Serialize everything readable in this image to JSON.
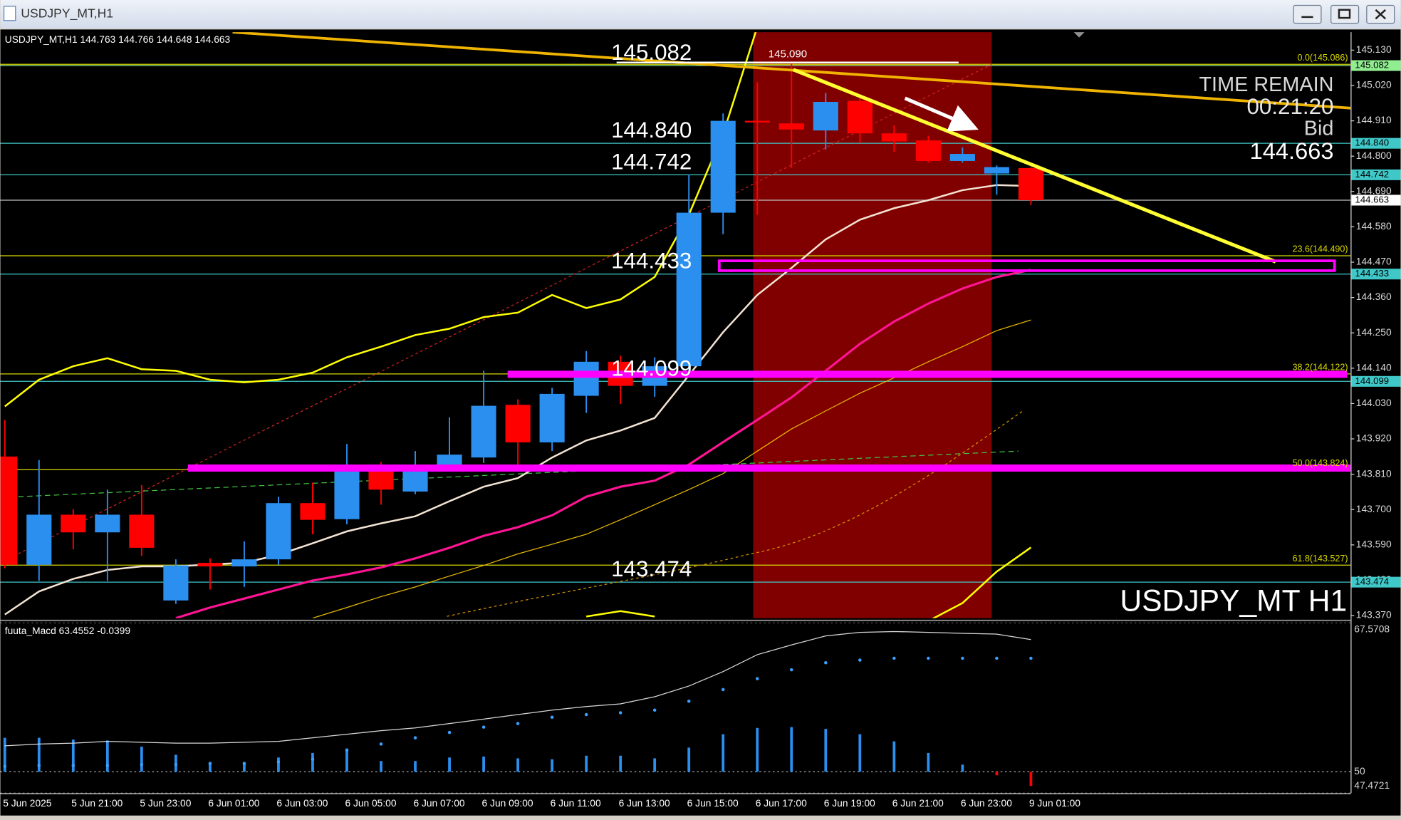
{
  "window": {
    "title": "USDJPY_MT,H1"
  },
  "chart_data": [
    {
      "type": "candlestick",
      "header": "USDJPY_MT,H1  144.763 144.766 144.648 144.663",
      "watermark": "USDJPY_MT H1",
      "time_remain_label": "TIME REMAIN",
      "time_remain": "00:21:20",
      "bid_label": "Bid",
      "high_label": "145.090",
      "categories": [
        "5 Jun 2025",
        null,
        "5 Jun 21:00",
        null,
        "5 Jun 23:00",
        null,
        "6 Jun 01:00",
        null,
        "6 Jun 03:00",
        null,
        "6 Jun 05:00",
        null,
        "6 Jun 07:00",
        null,
        "6 Jun 09:00",
        null,
        "6 Jun 11:00",
        null,
        "6 Jun 13:00",
        null,
        "6 Jun 15:00",
        null,
        "6 Jun 17:00",
        null,
        "6 Jun 19:00",
        null,
        "6 Jun 21:00",
        null,
        "6 Jun 23:00",
        null,
        "9 Jun 01:00"
      ],
      "open": [
        143.865,
        143.528,
        143.684,
        143.629,
        143.684,
        143.417,
        143.534,
        143.523,
        143.545,
        143.72,
        143.67,
        143.84,
        143.756,
        143.84,
        143.862,
        144.026,
        143.909,
        144.054,
        144.16,
        144.085,
        144.146,
        144.624,
        144.91,
        144.902,
        144.88,
        144.972,
        144.871,
        144.849,
        144.785,
        144.746,
        144.763
      ],
      "high": [
        143.979,
        143.854,
        143.701,
        143.762,
        143.776,
        143.545,
        143.548,
        143.601,
        143.74,
        143.784,
        143.904,
        143.848,
        143.882,
        143.987,
        144.132,
        144.043,
        144.079,
        144.193,
        144.179,
        144.174,
        144.743,
        144.933,
        145.03,
        145.09,
        144.997,
        144.983,
        144.896,
        144.863,
        144.827,
        144.771,
        144.766
      ],
      "low": [
        143.517,
        143.478,
        143.576,
        143.478,
        143.556,
        143.406,
        143.451,
        143.459,
        143.528,
        143.623,
        143.654,
        143.715,
        143.748,
        143.834,
        143.845,
        143.84,
        143.882,
        144.001,
        144.029,
        144.051,
        144.118,
        144.557,
        144.618,
        144.763,
        144.821,
        144.841,
        144.813,
        144.78,
        144.78,
        144.68,
        144.648
      ],
      "close": [
        143.528,
        143.684,
        143.629,
        143.684,
        143.581,
        143.526,
        143.523,
        143.545,
        143.72,
        143.668,
        143.818,
        143.762,
        143.818,
        143.871,
        144.023,
        143.909,
        144.06,
        144.16,
        144.085,
        144.146,
        144.624,
        144.91,
        144.905,
        144.883,
        144.969,
        144.871,
        144.846,
        144.785,
        144.807,
        144.766,
        144.663
      ],
      "up_color": "#2b8ff0",
      "down_color": "#ff0000",
      "series": [
        {
          "color": "#f3e3d3",
          "width": 2,
          "values": [
            143.373,
            143.445,
            143.484,
            143.512,
            143.523,
            143.523,
            143.529,
            143.534,
            143.559,
            143.595,
            143.632,
            143.657,
            143.679,
            143.726,
            143.771,
            143.798,
            143.862,
            143.915,
            143.946,
            143.985,
            144.118,
            144.252,
            144.368,
            144.452,
            144.541,
            144.602,
            144.638,
            144.663,
            144.694,
            144.71,
            144.707
          ]
        },
        {
          "color": "#ffff00",
          "width": 2,
          "values": [
            144.021,
            144.104,
            144.146,
            144.171,
            144.137,
            144.132,
            144.104,
            144.096,
            144.104,
            144.126,
            144.174,
            144.207,
            144.243,
            144.263,
            144.299,
            144.313,
            144.368,
            144.327,
            144.354,
            144.424,
            144.618,
            144.869,
            145.202,
            null,
            null,
            null,
            null,
            null,
            null,
            null,
            null
          ]
        },
        {
          "color": "#ffff00",
          "width": 2,
          "values": [
            null,
            null,
            null,
            null,
            null,
            null,
            null,
            null,
            null,
            null,
            null,
            null,
            null,
            null,
            null,
            null,
            null,
            143.367,
            143.384,
            143.367,
            null,
            null,
            null,
            null,
            null,
            null,
            null,
            143.353,
            143.409,
            143.507,
            143.582
          ]
        },
        {
          "color": "#ff1493",
          "width": 2.5,
          "values": [
            null,
            null,
            null,
            null,
            null,
            143.362,
            143.395,
            143.423,
            143.451,
            143.479,
            143.498,
            143.52,
            143.548,
            143.581,
            143.618,
            143.645,
            143.682,
            143.74,
            143.771,
            143.79,
            143.84,
            143.91,
            143.979,
            144.049,
            144.132,
            144.216,
            144.285,
            144.341,
            144.388,
            144.424,
            144.446
          ]
        },
        {
          "color": "#e6b800",
          "width": 1,
          "values": [
            null,
            null,
            null,
            null,
            null,
            null,
            null,
            null,
            null,
            143.362,
            143.395,
            143.429,
            143.459,
            143.493,
            143.526,
            143.562,
            143.592,
            143.623,
            143.668,
            143.715,
            143.762,
            143.812,
            143.882,
            143.951,
            144.007,
            144.062,
            144.11,
            144.16,
            144.207,
            144.257,
            144.29
          ]
        }
      ],
      "levels": [
        {
          "value": 145.082,
          "label": "145.082",
          "color": "#90ee90"
        },
        {
          "value": 144.84,
          "label": "144.840",
          "color": "#40c8c8"
        },
        {
          "value": 144.742,
          "label": "144.742",
          "color": "#40c8c8"
        },
        {
          "value": 144.433,
          "label": "144.433",
          "color": "#40c8c8"
        },
        {
          "value": 144.099,
          "label": "144.099",
          "color": "#40c8c8"
        },
        {
          "value": 143.474,
          "label": "143.474",
          "color": "#40c8c8"
        }
      ],
      "bid": {
        "value": 144.663,
        "label": "144.663",
        "color": "#c0c0c0"
      },
      "fib_color": "#d8d800",
      "fib_levels": [
        {
          "value": 145.086,
          "label": "0.0(145.086)"
        },
        {
          "value": 144.49,
          "label": "23.6(144.490)"
        },
        {
          "value": 144.122,
          "label": "38.2(144.122)"
        },
        {
          "value": 143.824,
          "label": "50.0(143.824)"
        },
        {
          "value": 143.527,
          "label": "61.8(143.527)"
        }
      ],
      "ylim": [
        143.362,
        145.186
      ],
      "yticks": [
        {
          "value": 145.13,
          "label": "145.130"
        },
        {
          "value": 145.02,
          "label": "145.020"
        },
        {
          "value": 144.91,
          "label": "144.910"
        },
        {
          "value": 144.8,
          "label": "144.800"
        },
        {
          "value": 144.69,
          "label": "144.690"
        },
        {
          "value": 144.58,
          "label": "144.580"
        },
        {
          "value": 144.47,
          "label": "144.470"
        },
        {
          "value": 144.36,
          "label": "144.360"
        },
        {
          "value": 144.25,
          "label": "144.250"
        },
        {
          "value": 144.14,
          "label": "144.140"
        },
        {
          "value": 144.03,
          "label": "144.030"
        },
        {
          "value": 143.92,
          "label": "143.920"
        },
        {
          "value": 143.81,
          "label": "143.810"
        },
        {
          "value": 143.7,
          "label": "143.700"
        },
        {
          "value": 143.59,
          "label": "143.590"
        },
        {
          "value": 143.48,
          "label": "143.480"
        },
        {
          "value": 143.37,
          "label": "143.370"
        }
      ]
    },
    {
      "type": "macd",
      "title": "fuuta_Macd 63.4552  -0.0399",
      "histogram": [
        54.0,
        54.0,
        53.79,
        53.68,
        52.95,
        52.0,
        51.16,
        51.16,
        51.68,
        52.21,
        52.74,
        51.26,
        51.26,
        51.68,
        51.79,
        51.58,
        51.47,
        51.89,
        51.89,
        51.58,
        52.84,
        54.42,
        55.16,
        55.26,
        55.05,
        54.42,
        53.58,
        52.21,
        50.84,
        49.58,
        48.32
      ],
      "up_color": "#2b8ff0",
      "down_color": "#ff0000",
      "main": {
        "color": "#d8d8d8",
        "values": [
          53.05,
          53.26,
          53.37,
          53.58,
          53.47,
          53.37,
          53.37,
          53.47,
          53.58,
          54.0,
          54.42,
          54.84,
          55.16,
          55.68,
          56.21,
          56.73,
          57.26,
          57.68,
          58.0,
          58.84,
          60.1,
          61.79,
          63.79,
          64.94,
          66.0,
          66.42,
          66.52,
          66.42,
          66.31,
          66.21,
          65.57
        ]
      },
      "signal": {
        "color": "#3aa0ff",
        "values": [
          50.63,
          50.74,
          50.74,
          50.74,
          50.84,
          50.84,
          50.95,
          50.95,
          51.16,
          51.47,
          52.53,
          53.26,
          54.0,
          54.63,
          55.26,
          55.68,
          56.42,
          56.73,
          56.95,
          57.26,
          58.31,
          59.68,
          60.96,
          62.01,
          62.84,
          63.15,
          63.37,
          63.37,
          63.37,
          63.37,
          63.37
        ]
      },
      "ylim": [
        47.4721,
        67.5708
      ],
      "yticks": [
        67.5708,
        50,
        47.4721
      ]
    }
  ]
}
